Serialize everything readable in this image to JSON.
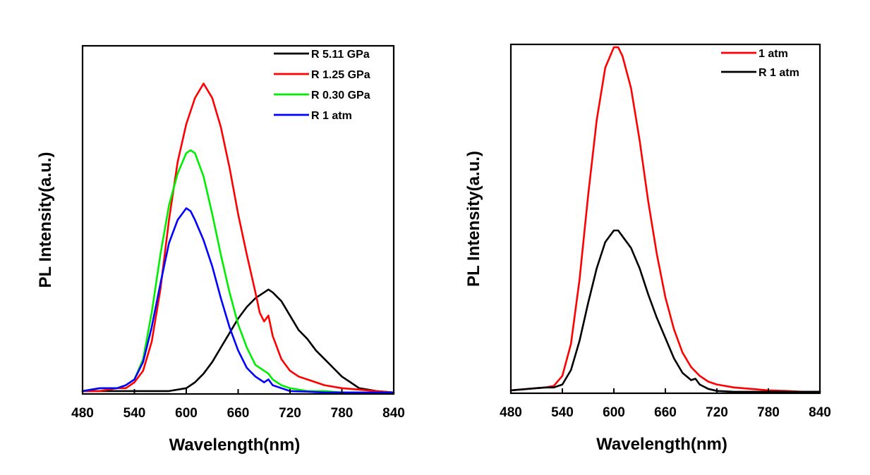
{
  "chart_data": [
    {
      "type": "line",
      "xlabel": "Wavelength(nm)",
      "ylabel": "PL Intensity(a.u.)",
      "xlim": [
        480,
        840
      ],
      "xticks": [
        "480",
        "540",
        "600",
        "660",
        "720",
        "780",
        "840"
      ],
      "ylim": [
        0,
        1.2
      ],
      "yticks_shown": false,
      "grid": false,
      "legend_position": "top-right",
      "series": [
        {
          "name": "R 5.11 GPa",
          "color": "#000000",
          "x": [
            480,
            500,
            520,
            540,
            560,
            580,
            600,
            610,
            620,
            630,
            640,
            650,
            660,
            670,
            680,
            690,
            695,
            700,
            710,
            720,
            730,
            740,
            750,
            760,
            770,
            780,
            790,
            800,
            810,
            820,
            840
          ],
          "y": [
            0.01,
            0.01,
            0.01,
            0.01,
            0.01,
            0.01,
            0.02,
            0.04,
            0.07,
            0.11,
            0.16,
            0.21,
            0.26,
            0.3,
            0.33,
            0.35,
            0.36,
            0.35,
            0.32,
            0.27,
            0.22,
            0.19,
            0.15,
            0.12,
            0.09,
            0.06,
            0.04,
            0.02,
            0.015,
            0.01,
            0.005
          ]
        },
        {
          "name": "R 1.25 GPa",
          "color": "#ff0000",
          "x": [
            480,
            500,
            520,
            530,
            540,
            550,
            560,
            570,
            580,
            590,
            600,
            610,
            620,
            630,
            640,
            650,
            660,
            670,
            680,
            685,
            690,
            695,
            700,
            710,
            720,
            730,
            740,
            760,
            780,
            800,
            820,
            840
          ],
          "y": [
            0.01,
            0.01,
            0.02,
            0.02,
            0.04,
            0.08,
            0.18,
            0.36,
            0.6,
            0.8,
            0.93,
            1.02,
            1.07,
            1.02,
            0.92,
            0.78,
            0.62,
            0.48,
            0.35,
            0.28,
            0.25,
            0.27,
            0.2,
            0.12,
            0.08,
            0.06,
            0.05,
            0.03,
            0.02,
            0.015,
            0.01,
            0.005
          ]
        },
        {
          "name": "R 0.30 GPa",
          "color": "#00ee00",
          "x": [
            480,
            500,
            520,
            530,
            540,
            550,
            560,
            570,
            580,
            590,
            600,
            605,
            610,
            620,
            630,
            640,
            650,
            660,
            670,
            680,
            690,
            695,
            700,
            710,
            720,
            740,
            760,
            780,
            800,
            840
          ],
          "y": [
            0.01,
            0.02,
            0.02,
            0.03,
            0.05,
            0.12,
            0.28,
            0.48,
            0.65,
            0.76,
            0.83,
            0.84,
            0.83,
            0.75,
            0.62,
            0.48,
            0.35,
            0.24,
            0.16,
            0.1,
            0.08,
            0.07,
            0.05,
            0.03,
            0.02,
            0.01,
            0.01,
            0.005,
            0.005,
            0.005
          ]
        },
        {
          "name": "R 1 atm",
          "color": "#0000ff",
          "x": [
            480,
            500,
            520,
            530,
            540,
            550,
            560,
            570,
            580,
            590,
            600,
            605,
            610,
            620,
            630,
            640,
            650,
            660,
            670,
            680,
            690,
            695,
            700,
            710,
            720,
            740,
            760,
            780,
            800,
            840
          ],
          "y": [
            0.01,
            0.02,
            0.02,
            0.03,
            0.05,
            0.11,
            0.23,
            0.38,
            0.52,
            0.6,
            0.64,
            0.63,
            0.6,
            0.53,
            0.44,
            0.33,
            0.23,
            0.15,
            0.09,
            0.06,
            0.04,
            0.05,
            0.03,
            0.02,
            0.01,
            0.008,
            0.005,
            0.005,
            0.005,
            0.005
          ]
        }
      ]
    },
    {
      "type": "line",
      "xlabel": "Wavelength(nm)",
      "ylabel": "PL Intensity(a.u.)",
      "xlim": [
        480,
        840
      ],
      "xticks": [
        "480",
        "540",
        "600",
        "660",
        "720",
        "780",
        "840"
      ],
      "ylim": [
        0,
        1.2
      ],
      "yticks_shown": false,
      "grid": false,
      "legend_position": "top-right",
      "series": [
        {
          "name": "1 atm",
          "color": "#ff0000",
          "x": [
            480,
            500,
            520,
            530,
            540,
            550,
            560,
            570,
            580,
            590,
            600,
            605,
            610,
            620,
            630,
            640,
            650,
            660,
            670,
            680,
            690,
            700,
            710,
            720,
            740,
            760,
            780,
            800,
            820,
            840
          ],
          "y": [
            0.01,
            0.015,
            0.02,
            0.025,
            0.06,
            0.17,
            0.39,
            0.68,
            0.94,
            1.12,
            1.19,
            1.19,
            1.16,
            1.05,
            0.87,
            0.66,
            0.48,
            0.33,
            0.22,
            0.14,
            0.09,
            0.06,
            0.04,
            0.03,
            0.02,
            0.015,
            0.01,
            0.008,
            0.005,
            0.005
          ]
        },
        {
          "name": "R 1 atm",
          "color": "#000000",
          "x": [
            480,
            500,
            520,
            530,
            540,
            550,
            560,
            570,
            580,
            590,
            600,
            605,
            610,
            620,
            630,
            640,
            650,
            660,
            670,
            680,
            690,
            695,
            700,
            710,
            720,
            740,
            760,
            780,
            800,
            840
          ],
          "y": [
            0.01,
            0.015,
            0.02,
            0.02,
            0.03,
            0.08,
            0.18,
            0.31,
            0.43,
            0.52,
            0.56,
            0.56,
            0.54,
            0.5,
            0.43,
            0.34,
            0.26,
            0.19,
            0.12,
            0.07,
            0.045,
            0.05,
            0.03,
            0.015,
            0.008,
            0.005,
            0.005,
            0.005,
            0.005,
            0.005
          ]
        }
      ]
    }
  ]
}
